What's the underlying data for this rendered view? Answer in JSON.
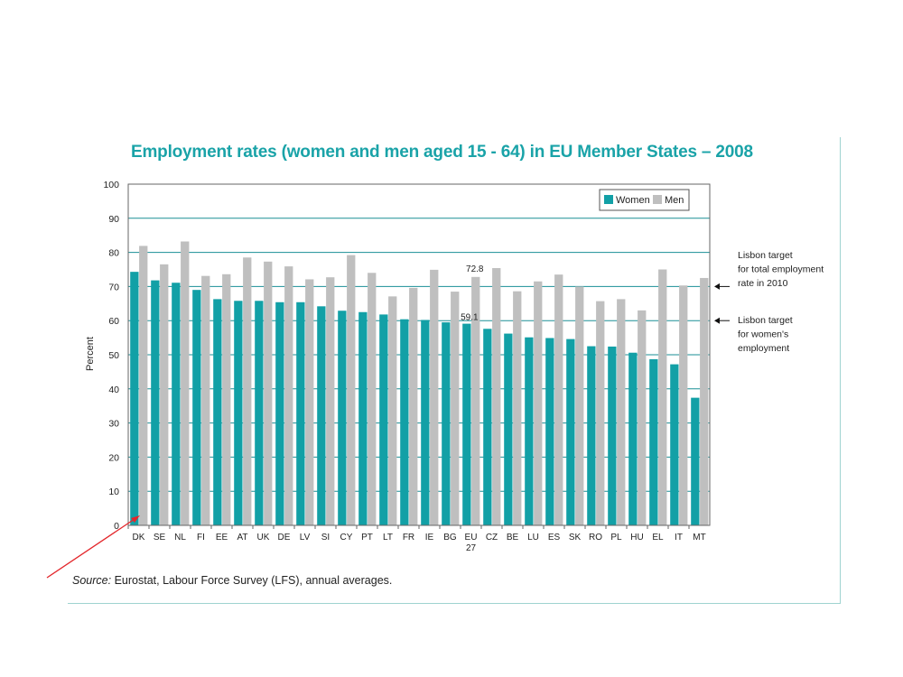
{
  "title": "Employment rates (women and men aged 15 - 64) in EU Member States – 2008",
  "source": {
    "label": "Source:",
    "text": "Eurostat, Labour Force Survey (LFS), annual averages."
  },
  "colors": {
    "women": "#12a0a6",
    "men": "#bfbfbf",
    "title": "#1aa3a8",
    "gridline": "#1a8f96",
    "annotation_arrow": "#e3262b"
  },
  "chart_data": {
    "type": "bar",
    "title": "Employment rates (women and men aged 15 - 64) in EU Member States – 2008",
    "ylabel": "Percent",
    "xlabel": "",
    "ylim": [
      0,
      100
    ],
    "yticks": [
      0,
      10,
      20,
      30,
      40,
      50,
      60,
      70,
      80,
      90,
      100
    ],
    "grid": true,
    "legend_position": "top-right",
    "categories": [
      "DK",
      "SE",
      "NL",
      "FI",
      "EE",
      "AT",
      "UK",
      "DE",
      "LV",
      "SI",
      "CY",
      "PT",
      "LT",
      "FR",
      "IE",
      "BG",
      "EU\n27",
      "CZ",
      "BE",
      "LU",
      "ES",
      "SK",
      "RO",
      "PL",
      "HU",
      "EL",
      "IT",
      "MT"
    ],
    "series": [
      {
        "name": "Women",
        "values": [
          74.3,
          71.8,
          71.1,
          69.0,
          66.3,
          65.8,
          65.8,
          65.4,
          65.4,
          64.2,
          62.9,
          62.5,
          61.8,
          60.4,
          60.2,
          59.5,
          59.1,
          57.6,
          56.2,
          55.1,
          54.9,
          54.6,
          52.5,
          52.4,
          50.6,
          48.7,
          47.2,
          37.4
        ]
      },
      {
        "name": "Men",
        "values": [
          81.9,
          76.5,
          83.2,
          73.1,
          73.6,
          78.5,
          77.3,
          75.9,
          72.1,
          72.7,
          79.2,
          74.0,
          67.1,
          69.6,
          74.9,
          68.5,
          72.8,
          75.4,
          68.6,
          71.5,
          73.5,
          70.0,
          65.7,
          66.3,
          63.0,
          75.0,
          70.3,
          72.5
        ]
      }
    ],
    "annotations": [
      {
        "text": "72.8"
      },
      {
        "text": "59.1"
      },
      {
        "text_lines": [
          "Lisbon target",
          "for total employment",
          "rate in 2010"
        ],
        "value": 70
      },
      {
        "text_lines": [
          "Lisbon target",
          "for women's",
          "employment"
        ],
        "value": 60
      }
    ]
  }
}
